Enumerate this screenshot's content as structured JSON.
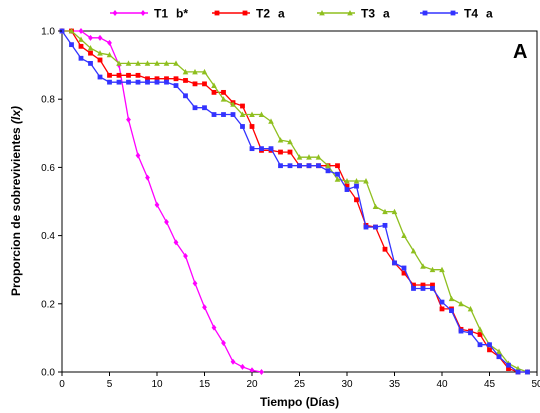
{
  "chart_data": {
    "type": "line",
    "panel_label": "A",
    "xlabel": "Tiempo (Días)",
    "ylabel_main": "Proporcion de sobrevivientes ",
    "ylabel_italic": "(lx)",
    "xlim": [
      0,
      50
    ],
    "ylim": [
      0,
      1.0
    ],
    "xticks": [
      0,
      5,
      10,
      15,
      20,
      25,
      30,
      35,
      40,
      45,
      50
    ],
    "yticks": [
      0.0,
      0.2,
      0.4,
      0.6,
      0.8,
      1.0
    ],
    "xtick_labels": [
      "0",
      "5",
      "10",
      "15",
      "20",
      "25",
      "30",
      "35",
      "40",
      "45",
      "50"
    ],
    "ytick_labels": [
      "0.0",
      "0.2",
      "0.4",
      "0.6",
      "0.8",
      "1.0"
    ],
    "grid": false,
    "legend_position": "top",
    "series": [
      {
        "name": "T1",
        "group": "b*",
        "color": "#ff00ff",
        "marker": "diamond",
        "x": [
          0,
          1,
          2,
          3,
          4,
          5,
          6,
          7,
          8,
          9,
          10,
          11,
          12,
          13,
          14,
          15,
          16,
          17,
          18,
          19,
          20,
          21
        ],
        "y": [
          1.0,
          1.0,
          1.0,
          0.98,
          0.98,
          0.965,
          0.9,
          0.74,
          0.635,
          0.57,
          0.49,
          0.44,
          0.38,
          0.34,
          0.26,
          0.19,
          0.13,
          0.085,
          0.03,
          0.015,
          0.005,
          0.0
        ]
      },
      {
        "name": "T2",
        "group": "a",
        "color": "#ff0000",
        "marker": "square",
        "x": [
          0,
          1,
          2,
          3,
          4,
          5,
          6,
          7,
          8,
          9,
          10,
          11,
          12,
          13,
          14,
          15,
          16,
          17,
          18,
          19,
          20,
          21,
          22,
          23,
          24,
          25,
          26,
          27,
          28,
          29,
          30,
          31,
          32,
          33,
          34,
          35,
          36,
          37,
          38,
          39,
          40,
          41,
          42,
          43,
          44,
          45,
          46,
          47,
          48,
          49
        ],
        "y": [
          1.0,
          1.0,
          0.955,
          0.935,
          0.915,
          0.87,
          0.87,
          0.87,
          0.87,
          0.86,
          0.86,
          0.86,
          0.86,
          0.855,
          0.845,
          0.845,
          0.82,
          0.82,
          0.79,
          0.78,
          0.72,
          0.65,
          0.65,
          0.645,
          0.645,
          0.605,
          0.605,
          0.605,
          0.605,
          0.605,
          0.545,
          0.505,
          0.43,
          0.425,
          0.36,
          0.32,
          0.29,
          0.255,
          0.255,
          0.255,
          0.185,
          0.185,
          0.125,
          0.12,
          0.11,
          0.065,
          0.045,
          0.01,
          0.0,
          0.0
        ]
      },
      {
        "name": "T3",
        "group": "a",
        "color": "#8fbf1f",
        "marker": "triangle",
        "x": [
          0,
          1,
          2,
          3,
          4,
          5,
          6,
          7,
          8,
          9,
          10,
          11,
          12,
          13,
          14,
          15,
          16,
          17,
          18,
          19,
          20,
          21,
          22,
          23,
          24,
          25,
          26,
          27,
          28,
          29,
          30,
          31,
          32,
          33,
          34,
          35,
          36,
          37,
          38,
          39,
          40,
          41,
          42,
          43,
          44,
          45,
          46,
          47,
          48,
          49
        ],
        "y": [
          1.0,
          1.0,
          0.975,
          0.95,
          0.935,
          0.93,
          0.905,
          0.905,
          0.905,
          0.905,
          0.905,
          0.905,
          0.905,
          0.88,
          0.88,
          0.88,
          0.84,
          0.8,
          0.785,
          0.755,
          0.755,
          0.755,
          0.735,
          0.68,
          0.675,
          0.63,
          0.63,
          0.63,
          0.605,
          0.565,
          0.56,
          0.56,
          0.56,
          0.485,
          0.47,
          0.47,
          0.4,
          0.355,
          0.31,
          0.3,
          0.3,
          0.215,
          0.2,
          0.185,
          0.125,
          0.08,
          0.06,
          0.025,
          0.01,
          0.0
        ]
      },
      {
        "name": "T4",
        "group": "a",
        "color": "#3333ff",
        "marker": "square",
        "x": [
          0,
          1,
          2,
          3,
          4,
          5,
          6,
          7,
          8,
          9,
          10,
          11,
          12,
          13,
          14,
          15,
          16,
          17,
          18,
          19,
          20,
          21,
          22,
          23,
          24,
          25,
          26,
          27,
          28,
          29,
          30,
          31,
          32,
          33,
          34,
          35,
          36,
          37,
          38,
          39,
          40,
          41,
          42,
          43,
          44,
          45,
          46,
          47,
          48,
          49
        ],
        "y": [
          1.0,
          0.96,
          0.92,
          0.905,
          0.865,
          0.85,
          0.85,
          0.85,
          0.85,
          0.85,
          0.85,
          0.85,
          0.84,
          0.81,
          0.775,
          0.775,
          0.755,
          0.755,
          0.755,
          0.72,
          0.655,
          0.655,
          0.655,
          0.605,
          0.605,
          0.605,
          0.605,
          0.605,
          0.59,
          0.58,
          0.535,
          0.545,
          0.425,
          0.425,
          0.43,
          0.32,
          0.305,
          0.245,
          0.245,
          0.245,
          0.205,
          0.18,
          0.12,
          0.115,
          0.08,
          0.08,
          0.045,
          0.02,
          0.0,
          0.0
        ]
      }
    ]
  }
}
